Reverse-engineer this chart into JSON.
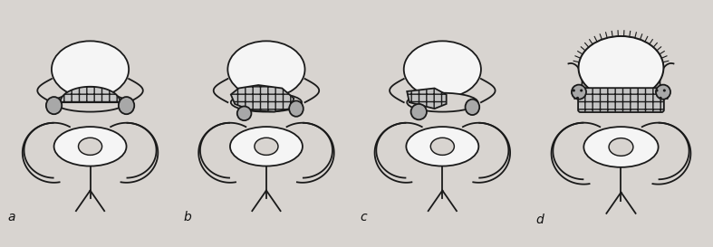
{
  "background_color": "#d8d4d0",
  "labels": [
    "a",
    "b",
    "c",
    "d"
  ],
  "label_fontsize": 10,
  "fig_width": 7.87,
  "fig_height": 2.73,
  "dpi": 100,
  "line_color": "#1a1a1a",
  "line_width": 1.3,
  "white_fill": "#f5f5f5",
  "gray_fill": "#c0bcb8",
  "hatch_fill": "#b8b4b0"
}
